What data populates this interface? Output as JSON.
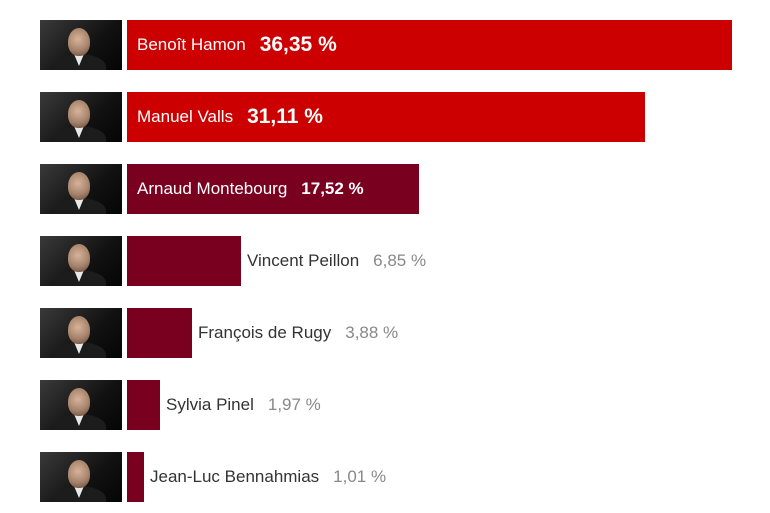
{
  "chart_data": {
    "type": "bar",
    "orientation": "horizontal",
    "unit": "%",
    "categories": [
      "Benoît Hamon",
      "Manuel Valls",
      "Arnaud Montebourg",
      "Vincent Peillon",
      "François de Rugy",
      "Sylvia Pinel",
      "Jean-Luc Bennahmias"
    ],
    "values": [
      36.35,
      31.11,
      17.52,
      6.85,
      3.88,
      1.97,
      1.01
    ],
    "value_labels": [
      "36,35 %",
      "31,11 %",
      "17,52 %",
      "6,85 %",
      "3,88 %",
      "1,97 %",
      "1,01 %"
    ],
    "bar_colors": [
      "#cc0000",
      "#cc0000",
      "#7a0020",
      "#7a0020",
      "#7a0020",
      "#7a0020",
      "#7a0020"
    ],
    "photos": [
      "portrait",
      "portrait",
      "portrait",
      "portrait",
      "portrait",
      "portrait",
      "portrait"
    ],
    "xlim": [
      0,
      36.35
    ],
    "grid": false,
    "legend": "none"
  }
}
